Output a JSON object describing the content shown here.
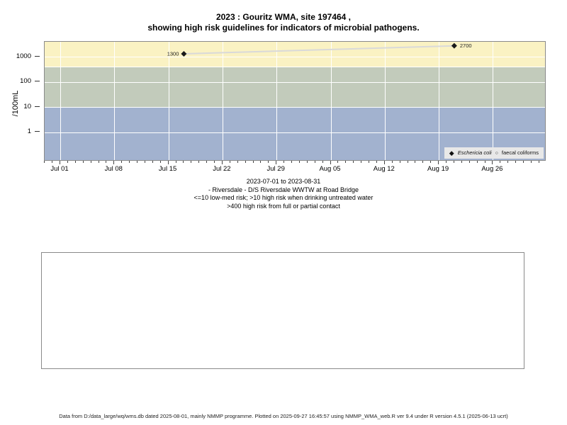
{
  "title": {
    "line1": "2023 : Gouritz WMA, site 197464 ,",
    "line2": "showing high risk guidelines for indicators of microbial pathogens."
  },
  "chart_data": {
    "type": "line",
    "title": "2023 : Gouritz WMA, site 197464, showing high risk guidelines for indicators of microbial pathogens.",
    "ylabel": "/100mL",
    "y_scale": "log10",
    "ylim": [
      0.07,
      4000
    ],
    "y_ticks": [
      "1000",
      "100",
      "10",
      "1"
    ],
    "x_range": [
      "2023-07-01",
      "2023-08-31"
    ],
    "x_ticks": [
      {
        "label": "Jul 01",
        "day": 0
      },
      {
        "label": "Jul 08",
        "day": 7
      },
      {
        "label": "Jul 15",
        "day": 14
      },
      {
        "label": "Jul 22",
        "day": 21
      },
      {
        "label": "Jul 29",
        "day": 28
      },
      {
        "label": "Aug 05",
        "day": 35
      },
      {
        "label": "Aug 12",
        "day": 42
      },
      {
        "label": "Aug 19",
        "day": 49
      },
      {
        "label": "Aug 26",
        "day": 56
      }
    ],
    "bands": [
      {
        "name": "high-risk-contact",
        "from": 400,
        "to": 4000,
        "color": "#FAF2C3",
        "meaning": ">400 high risk from full or partial contact"
      },
      {
        "name": "high-risk-drinking",
        "from": 10,
        "to": 400,
        "color": "#C2CBBB",
        "meaning": ">10 high risk when drinking untreated water"
      },
      {
        "name": "low-med-risk",
        "from": 0.07,
        "to": 10,
        "color": "#A2B2CF",
        "meaning": "<=10 low-med risk"
      }
    ],
    "series": [
      {
        "name": "Eschericia coli",
        "marker": "filled-diamond",
        "points": [
          {
            "day": 16,
            "value": 1300,
            "label": "1300",
            "label_side": "left"
          },
          {
            "day": 51,
            "value": 2700,
            "label": "2700",
            "label_side": "right"
          }
        ]
      },
      {
        "name": "faecal coliforms",
        "marker": "open-circle",
        "points": []
      }
    ],
    "legend_position": "bottom-right",
    "grid": true
  },
  "caption": {
    "lines": [
      "2023-07-01 to 2023-08-31",
      "- Riversdale - D/S Riversdale WWTW at Road Bridge",
      "<=10 low-med risk; >10 high risk when drinking untreated water",
      ">400 high risk from full or partial contact"
    ]
  },
  "footer": {
    "text": "Data from D:/data_large/wq/wms.db dated 2025-08-01, mainly NMMP programme. Plotted on 2025-09-27 16:45:57 using NMMP_WMA_web.R ver 9.4 under R version 4.5.1 (2025-06-13 ucrt)"
  },
  "colors": {
    "gridline": "#FFFFFF",
    "series_line": "#D9D9D9",
    "marker": "#1A1A1A",
    "legend_bg": "#E8E8E8",
    "panel_border": "#8A8A8A"
  }
}
